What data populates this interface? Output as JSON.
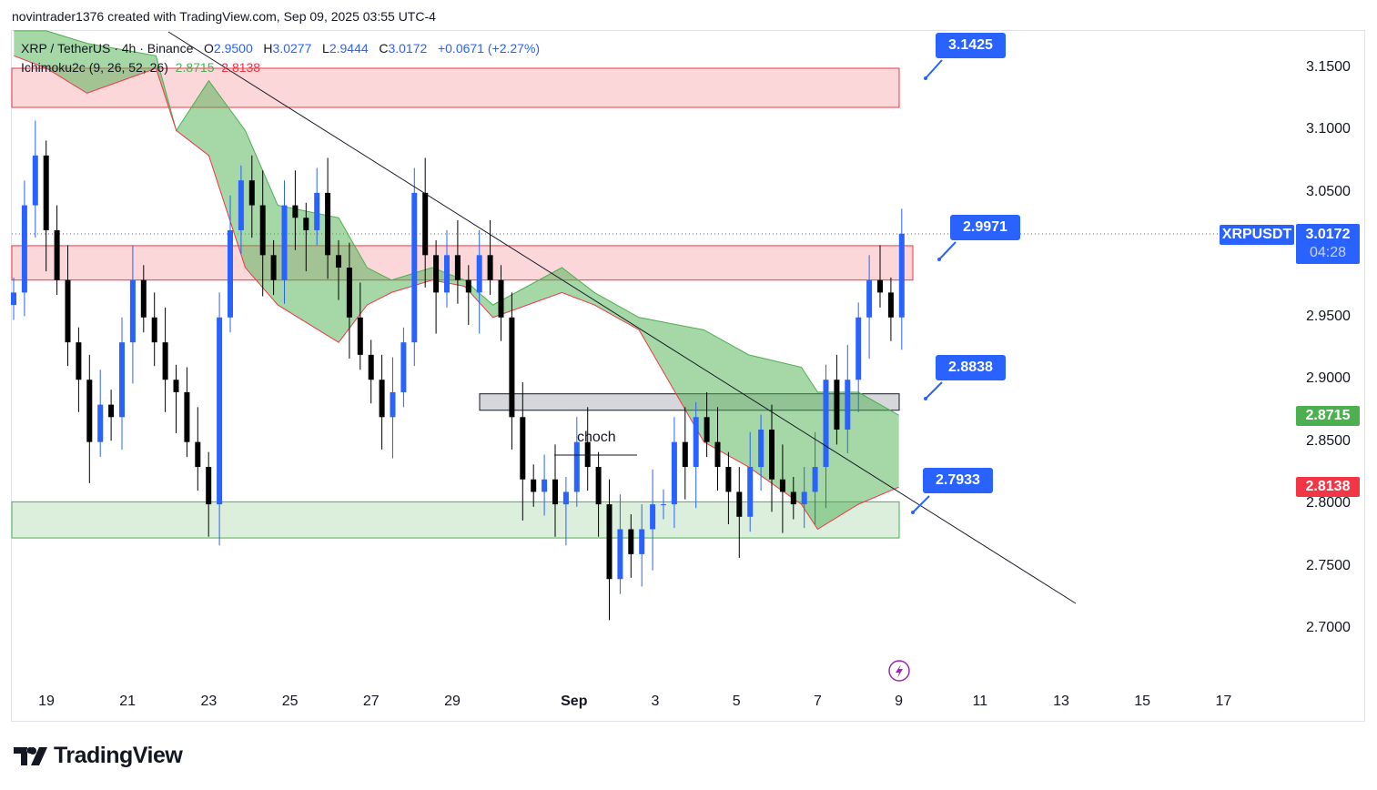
{
  "attribution": "novintrader1376 created with TradingView.com, Sep 09, 2025 03:55 UTC-4",
  "legend": {
    "symbol": "XRP / TetherUS · 4h · Binance",
    "o_label": "O",
    "o": "2.9500",
    "h_label": "H",
    "h": "3.0277",
    "l_label": "L",
    "l": "2.9444",
    "c_label": "C",
    "c": "3.0172",
    "change": "+0.0671 (+2.27%)",
    "indicator": "Ichimoku2c (9, 26, 52, 26)",
    "ind_a": "2.8715",
    "ind_b": "2.8138"
  },
  "colors": {
    "accent": "#2962ff",
    "up": "#2962ff",
    "down": "#000000",
    "cloud": "#4caf50",
    "red": "#f23645"
  },
  "price_labels": [
    "3.1425",
    "2.9971",
    "2.8838",
    "2.7933"
  ],
  "annotation": "choch",
  "price_axis": {
    "ticks": [
      "3.1500",
      "3.1000",
      "3.0500",
      "2.9500",
      "2.9000",
      "2.8500",
      "2.8000",
      "2.7500",
      "2.7000"
    ],
    "symbol_tag": "XRPUSDT",
    "last_price": "3.0172",
    "countdown": "04:28",
    "span_a": "2.8715",
    "span_b": "2.8138"
  },
  "time_axis": [
    "19",
    "21",
    "23",
    "25",
    "27",
    "29",
    "Sep",
    "3",
    "5",
    "7",
    "9",
    "11",
    "13",
    "15",
    "17"
  ],
  "logo": "TradingView",
  "chart_data": {
    "type": "candlestick",
    "timeframe": "4h",
    "start_day": "Aug 18",
    "step_days": 0.3333,
    "closes": [
      2.97,
      3.04,
      3.08,
      3.02,
      2.98,
      2.93,
      2.9,
      2.85,
      2.88,
      2.87,
      2.93,
      2.98,
      2.95,
      2.93,
      2.9,
      2.89,
      2.85,
      2.83,
      2.8,
      2.95,
      3.02,
      3.06,
      3.04,
      3.0,
      2.98,
      3.04,
      3.03,
      3.02,
      3.05,
      3.0,
      2.99,
      2.95,
      2.92,
      2.9,
      2.87,
      2.89,
      2.93,
      3.05,
      3.0,
      2.97,
      3.0,
      2.98,
      2.97,
      3.0,
      2.98,
      2.95,
      2.87,
      2.82,
      2.81,
      2.82,
      2.8,
      2.81,
      2.85,
      2.83,
      2.8,
      2.74,
      2.78,
      2.76,
      2.78,
      2.8,
      2.8,
      2.85,
      2.83,
      2.87,
      2.85,
      2.83,
      2.81,
      2.79,
      2.83,
      2.86,
      2.82,
      2.81,
      2.8,
      2.81,
      2.83,
      2.9,
      2.86,
      2.9,
      2.95,
      2.98,
      2.97,
      2.95,
      3.0172
    ],
    "cloud": [
      [
        -0.8,
        3.18,
        3.16
      ],
      [
        0,
        3.18,
        3.15
      ],
      [
        1,
        3.17,
        3.13
      ],
      [
        2.7,
        3.16,
        3.15
      ],
      [
        3.2,
        3.1,
        3.1
      ],
      [
        4,
        3.14,
        3.08
      ],
      [
        4.9,
        3.1,
        2.99
      ],
      [
        5.7,
        3.04,
        2.96
      ],
      [
        7.2,
        3.03,
        2.93
      ],
      [
        7.9,
        2.99,
        2.96
      ],
      [
        8.5,
        2.98,
        2.97
      ],
      [
        9.5,
        2.99,
        2.98
      ],
      [
        10.3,
        2.98,
        2.975
      ],
      [
        11,
        2.96,
        2.95
      ],
      [
        12.7,
        2.99,
        2.97
      ],
      [
        13.5,
        2.97,
        2.96
      ],
      [
        14.6,
        2.95,
        2.94
      ],
      [
        16.2,
        2.94,
        2.85
      ],
      [
        17.3,
        2.92,
        2.83
      ],
      [
        18.6,
        2.91,
        2.8
      ],
      [
        19,
        2.89,
        2.78
      ],
      [
        20,
        2.89,
        2.8
      ],
      [
        21,
        2.8715,
        2.8138
      ]
    ],
    "zones": [
      {
        "from": 3.1186,
        "to": 3.15,
        "color": "red"
      },
      {
        "from": 2.98,
        "to": 3.0076,
        "color": "red"
      },
      {
        "from": 2.8755,
        "to": 2.8887,
        "color": "grey"
      },
      {
        "from": 2.773,
        "to": 2.802,
        "color": "green"
      }
    ],
    "ylim": [
      2.65,
      3.18
    ]
  }
}
